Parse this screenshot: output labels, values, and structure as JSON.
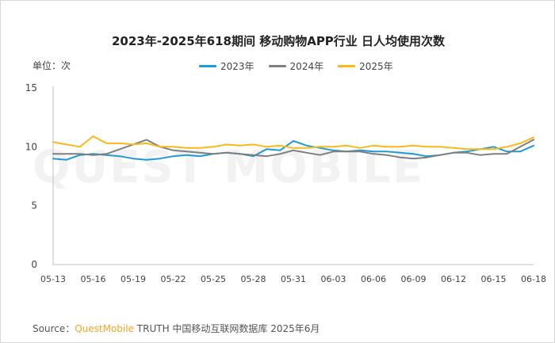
{
  "page": {
    "title": "2023年-2025年618期间 移动购物APP行业 日人均使用次数",
    "unit_label": "单位：次",
    "watermark": "QUEST MOBILE",
    "source": {
      "prefix": "Source：",
      "brand": "QuestMobile",
      "suffix": " TRUTH 中国移动互联网数据库 2025年6月"
    }
  },
  "chart_data": {
    "type": "line",
    "title": "2023年-2025年618期间 移动购物APP行业 日人均使用次数",
    "ylabel": "单位：次",
    "ylim": [
      0,
      15
    ],
    "yticks": [
      0,
      5,
      10,
      15
    ],
    "grid": false,
    "legend_position": "top",
    "x": [
      "05-13",
      "05-14",
      "05-15",
      "05-16",
      "05-17",
      "05-18",
      "05-19",
      "05-20",
      "05-21",
      "05-22",
      "05-23",
      "05-24",
      "05-25",
      "05-26",
      "05-27",
      "05-28",
      "05-29",
      "05-30",
      "05-31",
      "06-01",
      "06-02",
      "06-03",
      "06-04",
      "06-05",
      "06-06",
      "06-07",
      "06-08",
      "06-09",
      "06-10",
      "06-11",
      "06-12",
      "06-13",
      "06-14",
      "06-15",
      "06-16",
      "06-17",
      "06-18"
    ],
    "xticks": [
      "05-13",
      "05-16",
      "05-19",
      "05-22",
      "05-25",
      "05-28",
      "05-31",
      "06-03",
      "06-06",
      "06-09",
      "06-12",
      "06-15",
      "06-18"
    ],
    "series": [
      {
        "name": "2023年",
        "color": "#1e9ad6",
        "values": [
          9.0,
          8.9,
          9.3,
          9.4,
          9.3,
          9.2,
          9.0,
          8.9,
          9.0,
          9.2,
          9.3,
          9.2,
          9.4,
          9.5,
          9.4,
          9.2,
          9.8,
          9.7,
          10.5,
          10.1,
          9.9,
          9.7,
          9.6,
          9.7,
          9.6,
          9.6,
          9.5,
          9.4,
          9.2,
          9.3,
          9.5,
          9.6,
          9.8,
          10.0,
          9.6,
          9.6,
          10.1
        ]
      },
      {
        "name": "2024年",
        "color": "#7f7f7f",
        "values": [
          9.4,
          9.4,
          9.4,
          9.3,
          9.4,
          9.8,
          10.2,
          10.6,
          10.0,
          9.7,
          9.6,
          9.5,
          9.4,
          9.5,
          9.4,
          9.3,
          9.2,
          9.4,
          9.7,
          9.5,
          9.3,
          9.6,
          9.6,
          9.6,
          9.4,
          9.3,
          9.1,
          9.0,
          9.1,
          9.3,
          9.5,
          9.5,
          9.3,
          9.4,
          9.4,
          10.0,
          10.6
        ]
      },
      {
        "name": "2025年",
        "color": "#fbb81b",
        "values": [
          10.4,
          10.2,
          10.0,
          10.9,
          10.3,
          10.3,
          10.2,
          10.3,
          10.0,
          10.0,
          9.9,
          9.9,
          10.0,
          10.2,
          10.1,
          10.2,
          10.0,
          10.1,
          9.9,
          9.9,
          10.0,
          10.0,
          10.1,
          9.9,
          10.1,
          10.0,
          10.0,
          10.1,
          10.0,
          10.0,
          9.9,
          9.8,
          9.8,
          9.8,
          10.0,
          10.3,
          10.8
        ]
      }
    ]
  }
}
